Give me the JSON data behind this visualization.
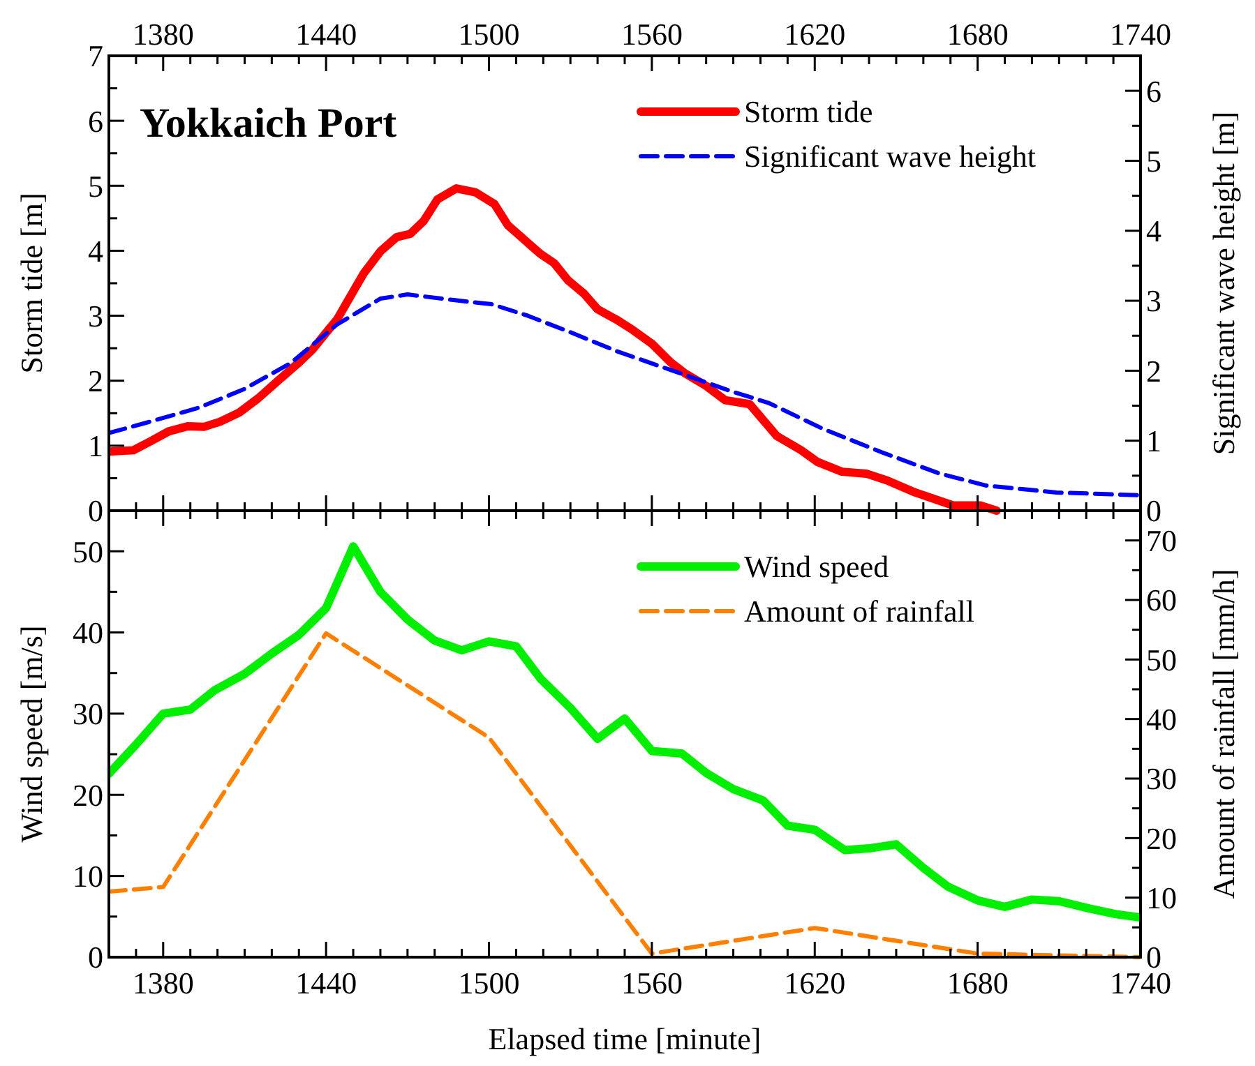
{
  "chart_data": [
    {
      "type": "line",
      "title": "Yokkaich Port",
      "ylabel": "Storm tide [m]",
      "y2label": "Significant wave height [m]",
      "xlim": [
        1360,
        1740
      ],
      "xticks": [
        {
          "value": 1370,
          "label": null
        },
        1380,
        {
          "value": 1390,
          "label": null
        },
        {
          "value": 1400,
          "label": null
        },
        {
          "value": 1410,
          "label": null
        },
        {
          "value": 1420,
          "label": null
        },
        {
          "value": 1430,
          "label": null
        },
        1440,
        {
          "value": 1450,
          "label": null
        },
        {
          "value": 1460,
          "label": null
        },
        {
          "value": 1470,
          "label": null
        },
        {
          "value": 1480,
          "label": null
        },
        {
          "value": 1490,
          "label": null
        },
        1500,
        {
          "value": 1510,
          "label": null
        },
        {
          "value": 1520,
          "label": null
        },
        {
          "value": 1530,
          "label": null
        },
        {
          "value": 1540,
          "label": null
        },
        {
          "value": 1550,
          "label": null
        },
        1560,
        {
          "value": 1570,
          "label": null
        },
        {
          "value": 1580,
          "label": null
        },
        {
          "value": 1590,
          "label": null
        },
        {
          "value": 1600,
          "label": null
        },
        {
          "value": 1610,
          "label": null
        },
        1620,
        {
          "value": 1630,
          "label": null
        },
        {
          "value": 1640,
          "label": null
        },
        {
          "value": 1650,
          "label": null
        },
        {
          "value": 1660,
          "label": null
        },
        {
          "value": 1670,
          "label": null
        },
        1680,
        {
          "value": 1690,
          "label": null
        },
        {
          "value": 1700,
          "label": null
        },
        {
          "value": 1710,
          "label": null
        },
        {
          "value": 1720,
          "label": null
        },
        {
          "value": 1730,
          "label": null
        },
        1740
      ],
      "ylim": [
        0,
        7
      ],
      "yticks": [
        0,
        {
          "value": 0.5,
          "label": null
        },
        1,
        {
          "value": 1.5,
          "label": null
        },
        2,
        {
          "value": 2.5,
          "label": null
        },
        3,
        {
          "value": 3.5,
          "label": null
        },
        4,
        {
          "value": 4.5,
          "label": null
        },
        5,
        {
          "value": 5.5,
          "label": null
        },
        6,
        {
          "value": 6.5,
          "label": null
        },
        7
      ],
      "y2lim": [
        0,
        6.5
      ],
      "y2ticks": [
        0,
        {
          "value": 0.5,
          "label": null
        },
        1,
        {
          "value": 1.5,
          "label": null
        },
        2,
        {
          "value": 2.5,
          "label": null
        },
        3,
        {
          "value": 3.5,
          "label": null
        },
        4,
        {
          "value": 4.5,
          "label": null
        },
        5,
        {
          "value": 5.5,
          "label": null
        },
        6
      ],
      "legend": "top right",
      "grid": false,
      "series": [
        {
          "name": "Storm tide",
          "color": "#ff0000",
          "line_style": "solid",
          "x": [
            1360,
            1369,
            1375,
            1382,
            1389,
            1395,
            1401,
            1408,
            1415,
            1422,
            1430,
            1435,
            1441,
            1444,
            1448,
            1454,
            1460,
            1466,
            1471,
            1476,
            1481,
            1488,
            1495,
            1502,
            1507,
            1513,
            1519,
            1524,
            1529,
            1535,
            1540,
            1547,
            1553,
            1560,
            1567,
            1572,
            1580,
            1587,
            1596,
            1606,
            1615,
            1621,
            1630,
            1639,
            1647,
            1657,
            1671,
            1681,
            1687
          ],
          "values": [
            0.91,
            0.93,
            1.06,
            1.22,
            1.3,
            1.29,
            1.37,
            1.51,
            1.73,
            1.99,
            2.28,
            2.48,
            2.79,
            2.94,
            3.23,
            3.66,
            3.99,
            4.21,
            4.26,
            4.46,
            4.79,
            4.96,
            4.9,
            4.72,
            4.39,
            4.17,
            3.95,
            3.81,
            3.55,
            3.34,
            3.1,
            2.94,
            2.78,
            2.57,
            2.28,
            2.12,
            1.92,
            1.7,
            1.64,
            1.15,
            0.93,
            0.75,
            0.6,
            0.57,
            0.46,
            0.28,
            0.08,
            0.08,
            0
          ]
        },
        {
          "name": "Significant wave height",
          "color": "#0000ff",
          "line_style": "dashed",
          "axis": "y2",
          "x": [
            1360,
            1375,
            1393,
            1410,
            1427,
            1444,
            1460,
            1470,
            1487,
            1501,
            1514,
            1530,
            1547,
            1567,
            1589,
            1603,
            1623,
            1645,
            1666,
            1683,
            1709,
            1740
          ],
          "values": [
            1.11,
            1.27,
            1.47,
            1.74,
            2.11,
            2.66,
            3.03,
            3.09,
            3.01,
            2.95,
            2.79,
            2.55,
            2.28,
            2.01,
            1.71,
            1.54,
            1.17,
            0.83,
            0.53,
            0.36,
            0.26,
            0.22
          ]
        }
      ]
    },
    {
      "type": "line",
      "xlabel": "Elapsed time [minute]",
      "ylabel": "Wind speed [m/s]",
      "y2label": "Amount of rainfall [mm/h]",
      "xlim": [
        1360,
        1740
      ],
      "xticks": [
        {
          "value": 1370,
          "label": null
        },
        1380,
        {
          "value": 1390,
          "label": null
        },
        {
          "value": 1400,
          "label": null
        },
        {
          "value": 1410,
          "label": null
        },
        {
          "value": 1420,
          "label": null
        },
        {
          "value": 1430,
          "label": null
        },
        1440,
        {
          "value": 1450,
          "label": null
        },
        {
          "value": 1460,
          "label": null
        },
        {
          "value": 1470,
          "label": null
        },
        {
          "value": 1480,
          "label": null
        },
        {
          "value": 1490,
          "label": null
        },
        1500,
        {
          "value": 1510,
          "label": null
        },
        {
          "value": 1520,
          "label": null
        },
        {
          "value": 1530,
          "label": null
        },
        {
          "value": 1540,
          "label": null
        },
        {
          "value": 1550,
          "label": null
        },
        1560,
        {
          "value": 1570,
          "label": null
        },
        {
          "value": 1580,
          "label": null
        },
        {
          "value": 1590,
          "label": null
        },
        {
          "value": 1600,
          "label": null
        },
        {
          "value": 1610,
          "label": null
        },
        1620,
        {
          "value": 1630,
          "label": null
        },
        {
          "value": 1640,
          "label": null
        },
        {
          "value": 1650,
          "label": null
        },
        {
          "value": 1660,
          "label": null
        },
        {
          "value": 1670,
          "label": null
        },
        1680,
        {
          "value": 1690,
          "label": null
        },
        {
          "value": 1700,
          "label": null
        },
        {
          "value": 1710,
          "label": null
        },
        {
          "value": 1720,
          "label": null
        },
        {
          "value": 1730,
          "label": null
        },
        1740
      ],
      "ylim": [
        0,
        55
      ],
      "yticks": [
        0,
        {
          "value": 5,
          "label": null
        },
        10,
        {
          "value": 15,
          "label": null
        },
        20,
        {
          "value": 25,
          "label": null
        },
        30,
        {
          "value": 35,
          "label": null
        },
        40,
        {
          "value": 45,
          "label": null
        },
        50
      ],
      "y2lim": [
        0,
        75
      ],
      "y2ticks": [
        0,
        {
          "value": 5,
          "label": null
        },
        10,
        {
          "value": 15,
          "label": null
        },
        20,
        {
          "value": 25,
          "label": null
        },
        30,
        {
          "value": 35,
          "label": null
        },
        40,
        {
          "value": 45,
          "label": null
        },
        50,
        {
          "value": 55,
          "label": null
        },
        60,
        {
          "value": 65,
          "label": null
        },
        70
      ],
      "legend": "top right",
      "grid": false,
      "series": [
        {
          "name": "Wind speed",
          "color": "#00ee00",
          "line_style": "solid",
          "x": [
            1360,
            1370,
            1380,
            1390,
            1399,
            1410,
            1420,
            1430,
            1440,
            1450,
            1460,
            1470,
            1480,
            1490,
            1500,
            1510,
            1519,
            1530,
            1540,
            1550,
            1560,
            1571,
            1580,
            1590,
            1601,
            1610,
            1620,
            1631,
            1640,
            1650,
            1660,
            1669,
            1680,
            1690,
            1700,
            1710,
            1721,
            1731,
            1740
          ],
          "values": [
            22.6,
            26.2,
            30,
            30.5,
            32.9,
            34.9,
            37.4,
            39.7,
            43,
            50.6,
            45,
            41.6,
            39,
            37.8,
            38.9,
            38.3,
            34.3,
            30.7,
            26.9,
            29.4,
            25.4,
            25.1,
            22.7,
            20.7,
            19.3,
            16.2,
            15.7,
            13.2,
            13.4,
            13.9,
            11,
            8.7,
            7,
            6.2,
            7.1,
            6.9,
            6,
            5.3,
            4.9
          ]
        },
        {
          "name": "Amount of rainfall",
          "color": "#ff7f00",
          "line_style": "dashed",
          "axis": "y2",
          "x": [
            1360,
            1380,
            1440,
            1500,
            1560,
            1620,
            1680,
            1700,
            1740
          ],
          "values": [
            11,
            11.8,
            54.4,
            36.9,
            0.6,
            4.9,
            0.6,
            0.4,
            0
          ]
        }
      ]
    }
  ]
}
